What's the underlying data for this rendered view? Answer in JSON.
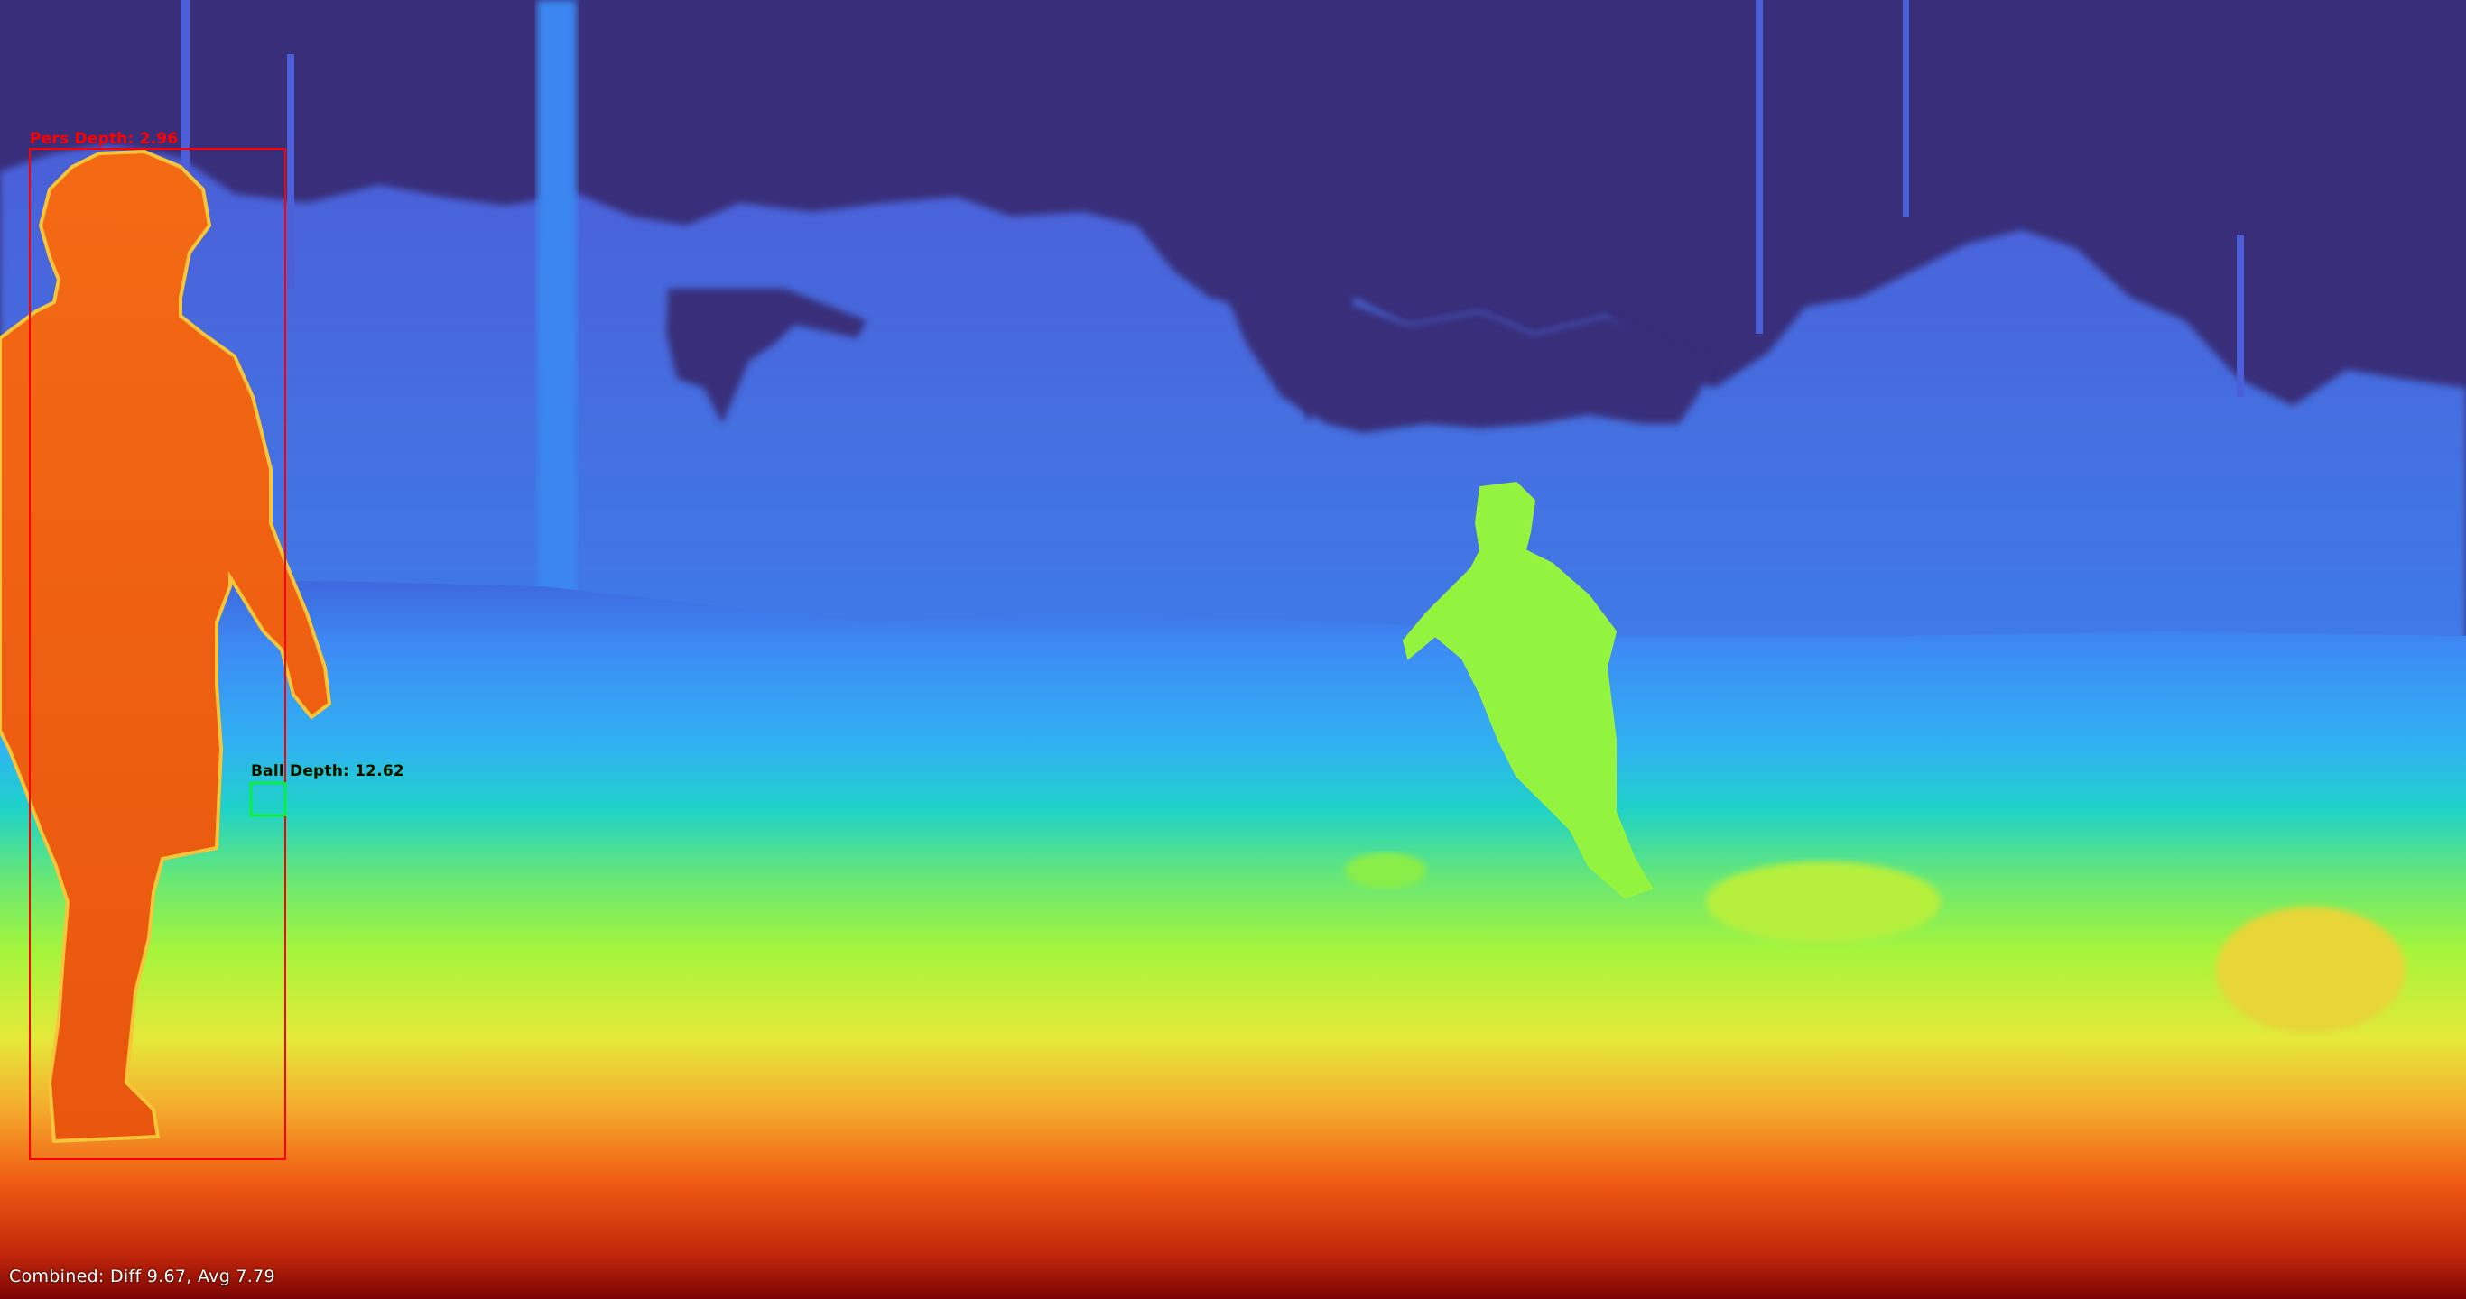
{
  "detections": [
    {
      "id": "person",
      "label": "Pers Depth: 2.96",
      "color": "#ff0000"
    },
    {
      "id": "ball",
      "label": "Ball Depth: 12.62",
      "color": "#00ff00"
    }
  ],
  "footer": {
    "combined": "Combined: Diff 9.67, Avg 7.79"
  },
  "colormap": {
    "far": "#382e7a",
    "mid_blue": "#3d8cf5",
    "cyan": "#1ed2c8",
    "green": "#a6f53a",
    "yellow": "#f5d034",
    "orange": "#f76a18",
    "near": "#7a0404"
  }
}
